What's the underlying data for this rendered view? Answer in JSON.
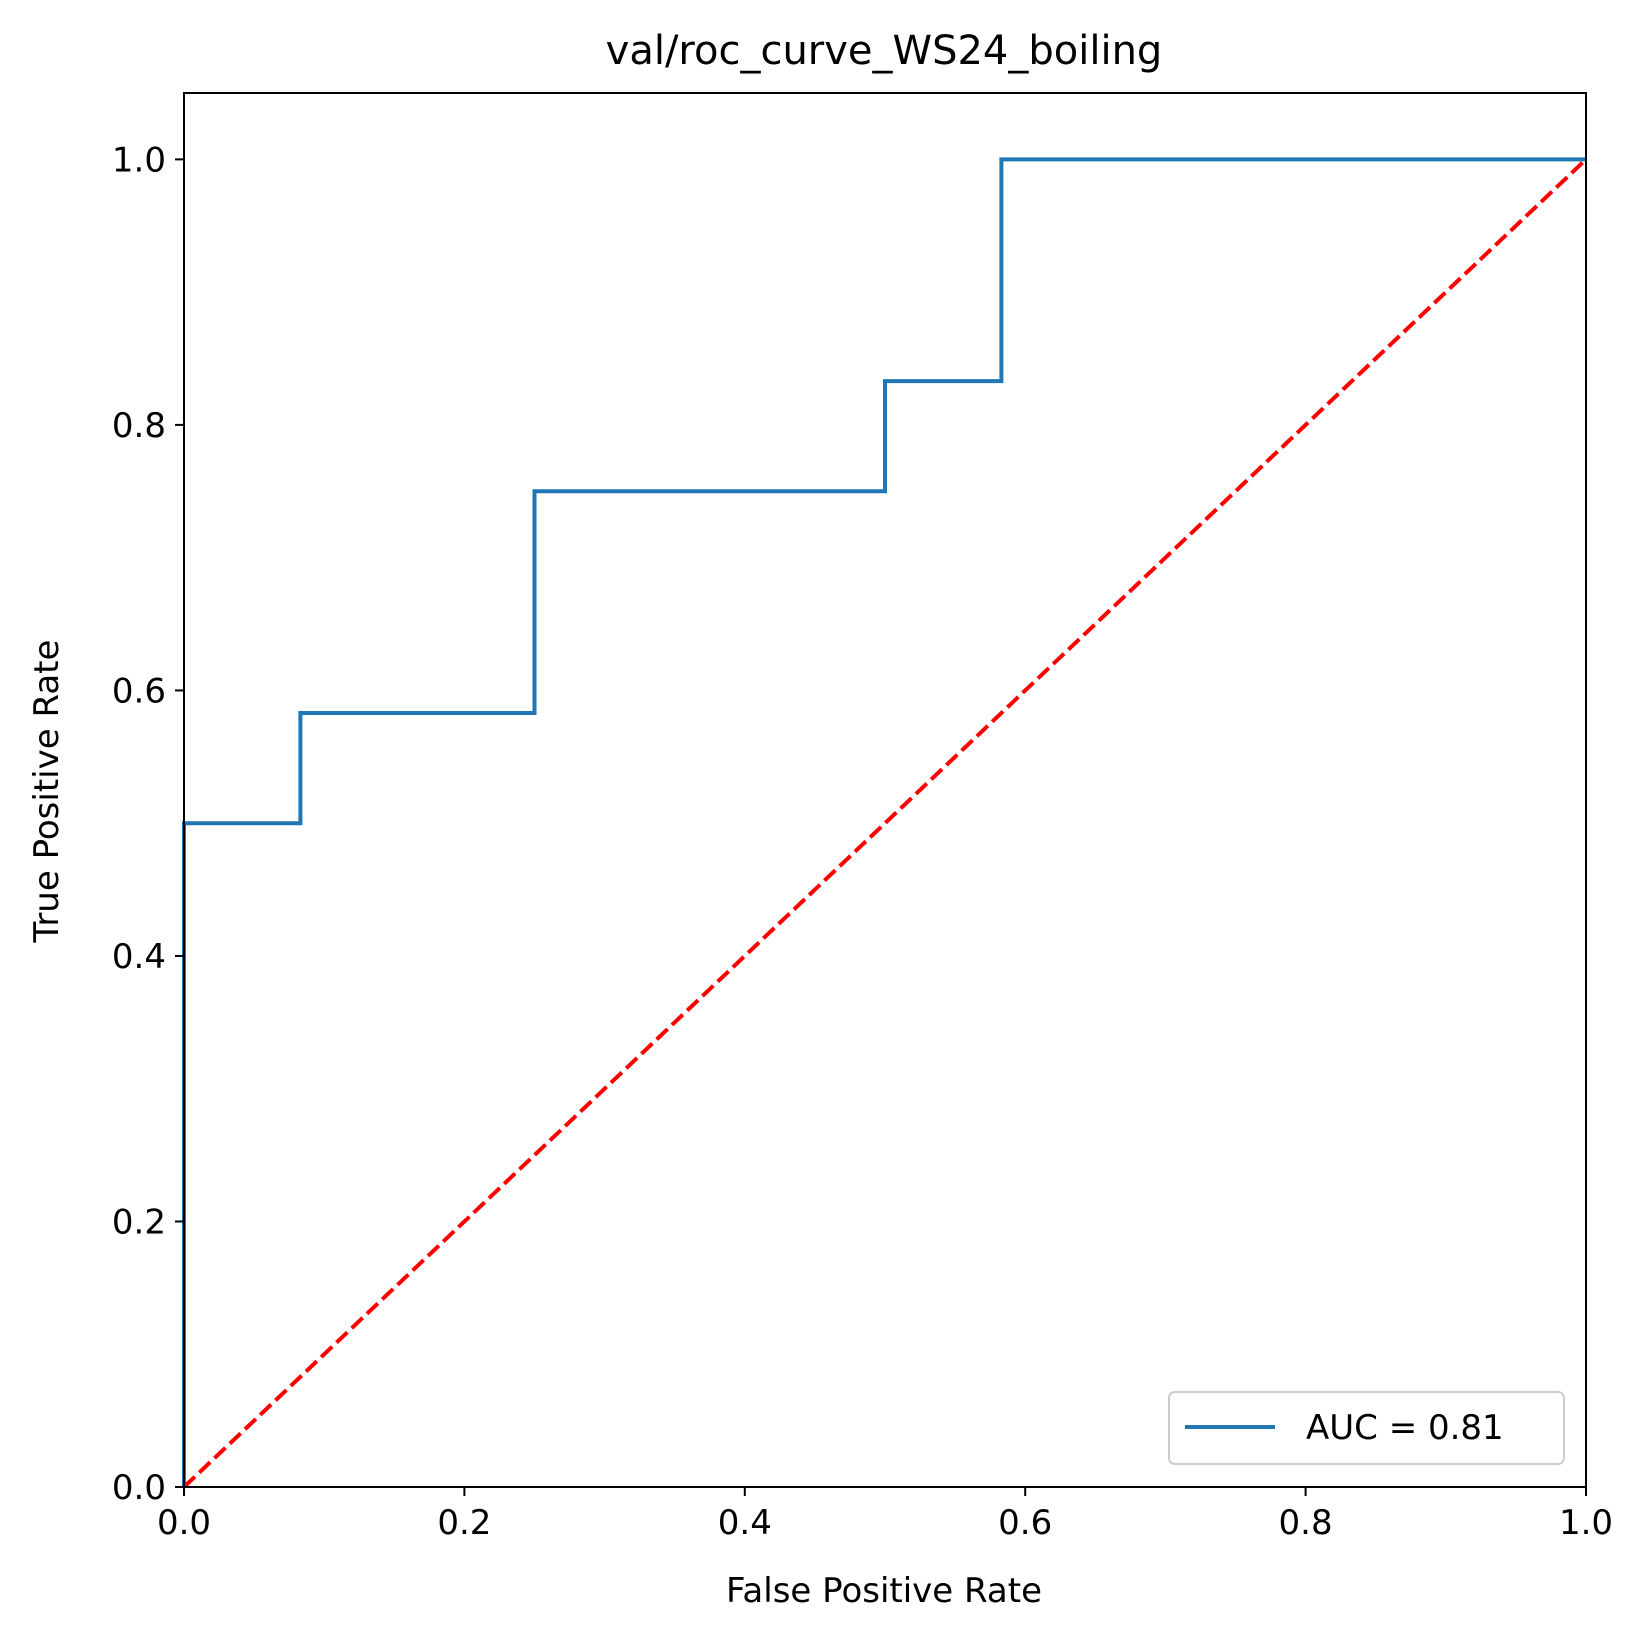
{
  "chart_data": {
    "type": "line",
    "title": "val/roc_curve_WS24_boiling",
    "xlabel": "False Positive Rate",
    "ylabel": "True Positive Rate",
    "xlim": [
      0.0,
      1.0
    ],
    "ylim": [
      0.0,
      1.05
    ],
    "xticks": [
      0.0,
      0.2,
      0.4,
      0.6,
      0.8,
      1.0
    ],
    "xtick_labels": [
      "0.0",
      "0.2",
      "0.4",
      "0.6",
      "0.8",
      "1.0"
    ],
    "yticks": [
      0.0,
      0.2,
      0.4,
      0.6,
      0.8,
      1.0
    ],
    "ytick_labels": [
      "0.0",
      "0.2",
      "0.4",
      "0.6",
      "0.8",
      "1.0"
    ],
    "grid": false,
    "legend_position": "bottom-right",
    "series": [
      {
        "name": "AUC = 0.81",
        "color": "#1f77b4",
        "style": "solid",
        "x": [
          0.0,
          0.0,
          0.083,
          0.083,
          0.25,
          0.25,
          0.5,
          0.5,
          0.583,
          0.583,
          1.0
        ],
        "y": [
          0.0,
          0.5,
          0.5,
          0.583,
          0.583,
          0.75,
          0.75,
          0.833,
          0.833,
          1.0,
          1.0
        ]
      },
      {
        "color": "#ff0000",
        "style": "dashed",
        "x": [
          0.0,
          1.0
        ],
        "y": [
          0.0,
          1.0
        ]
      }
    ]
  }
}
